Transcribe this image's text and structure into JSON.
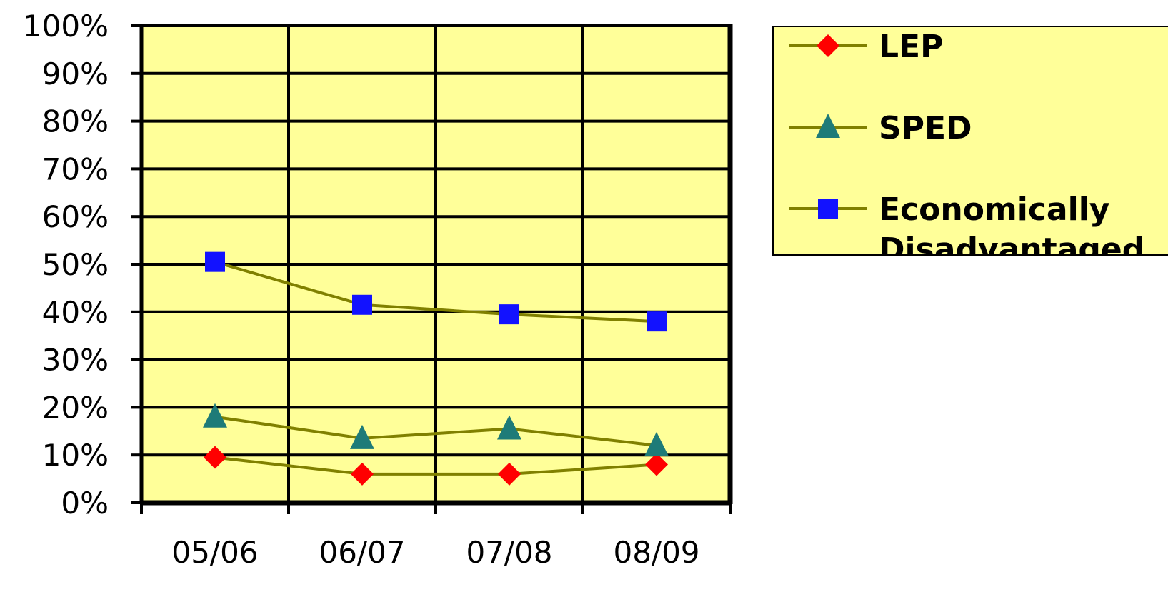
{
  "chart_data": {
    "type": "line",
    "categories": [
      "05/06",
      "06/07",
      "07/08",
      "08/09"
    ],
    "ylim": [
      0,
      100
    ],
    "y_ticks": [
      "0%",
      "10%",
      "20%",
      "30%",
      "40%",
      "50%",
      "60%",
      "70%",
      "80%",
      "90%",
      "100%"
    ],
    "y_unit": "%",
    "grid": true,
    "legend_position": "top-right",
    "line_color": "#808000",
    "plot_background": "#FFFF99",
    "series": [
      {
        "name": "LEP",
        "values": [
          9.5,
          6,
          6,
          8
        ],
        "marker": "diamond",
        "marker_color": "#FF0000"
      },
      {
        "name": "SPED",
        "values": [
          18,
          13.5,
          15.5,
          12
        ],
        "marker": "triangle",
        "marker_color": "#1E7B78"
      },
      {
        "name": "Economically Disadvantaged",
        "values": [
          50.5,
          41.5,
          39.5,
          38
        ],
        "marker": "square",
        "marker_color": "#1212FF"
      }
    ]
  }
}
